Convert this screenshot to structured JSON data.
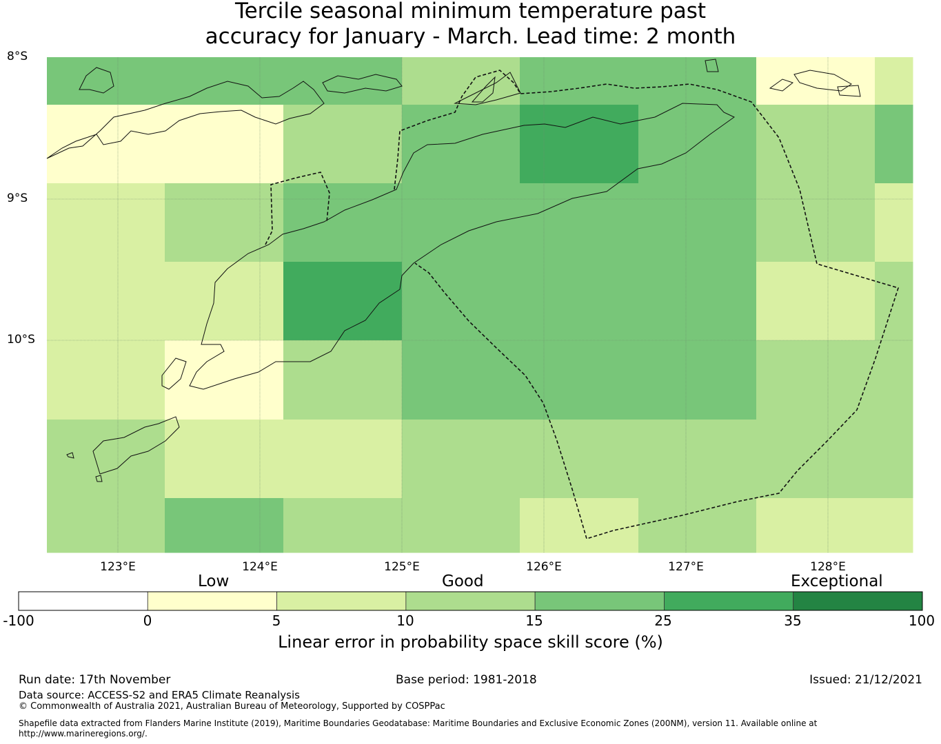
{
  "title": {
    "line1": "Tercile seasonal minimum temperature past",
    "line2": "accuracy for January - March. Lead time: 2 month"
  },
  "map": {
    "lat_labels": [
      "8°S",
      "9°S",
      "10°S"
    ],
    "lon_labels": [
      "123°E",
      "124°E",
      "125°E",
      "126°E",
      "127°E",
      "128°E"
    ],
    "skill_grid_categories": [
      [
        "c15_25",
        "c15_25",
        "c15_25",
        "c10_15",
        "c15_25",
        "c15_25",
        "c0_5",
        "c5_10"
      ],
      [
        "c0_5",
        "c0_5",
        "c10_15",
        "c15_25",
        "c25_35",
        "c15_25",
        "c10_15",
        "c15_25"
      ],
      [
        "c5_10",
        "c10_15",
        "c15_25",
        "c15_25",
        "c15_25",
        "c15_25",
        "c10_15",
        "c5_10"
      ],
      [
        "c5_10",
        "c5_10",
        "c25_35",
        "c15_25",
        "c15_25",
        "c15_25",
        "c5_10",
        "c10_15"
      ],
      [
        "c5_10",
        "c0_5",
        "c10_15",
        "c15_25",
        "c15_25",
        "c15_25",
        "c10_15",
        "c10_15"
      ],
      [
        "c10_15",
        "c5_10",
        "c5_10",
        "c10_15",
        "c10_15",
        "c10_15",
        "c10_15",
        "c10_15"
      ],
      [
        "c10_15",
        "c15_25",
        "c10_15",
        "c10_15",
        "c5_10",
        "c10_15",
        "c5_10",
        "c5_10"
      ]
    ]
  },
  "colorbar": {
    "categories": [
      "Low",
      "Good",
      "Exceptional"
    ],
    "ticks": [
      "-100",
      "0",
      "5",
      "10",
      "15",
      "25",
      "35",
      "100"
    ],
    "label": "Linear error in probability space skill score (%)",
    "colors": {
      "neg": "#ffffff",
      "c0_5": "#ffffcc",
      "c5_10": "#d9f0a3",
      "c10_15": "#addd8e",
      "c15_25": "#78c679",
      "c25_35": "#41ab5d",
      "c35_100": "#238443"
    }
  },
  "footer": {
    "run_date": "Run date: 17th November",
    "base_period": "Base period: 1981-2018",
    "issued": "Issued: 21/12/2021",
    "data_source": "Data source: ACCESS-S2 and ERA5 Climate Reanalysis",
    "copyright": "© Commonwealth of Australia 2021, Australian Bureau of Meteorology, Supported by COSPPac",
    "shapefile_line1": "Shapefile data extracted from Flanders Marine Institute (2019), Maritime Boundaries Geodatabase: Maritime Boundaries and Exclusive Economic Zones (200NM), version 11. Available online at",
    "shapefile_line2": "http://www.marineregions.org/."
  }
}
